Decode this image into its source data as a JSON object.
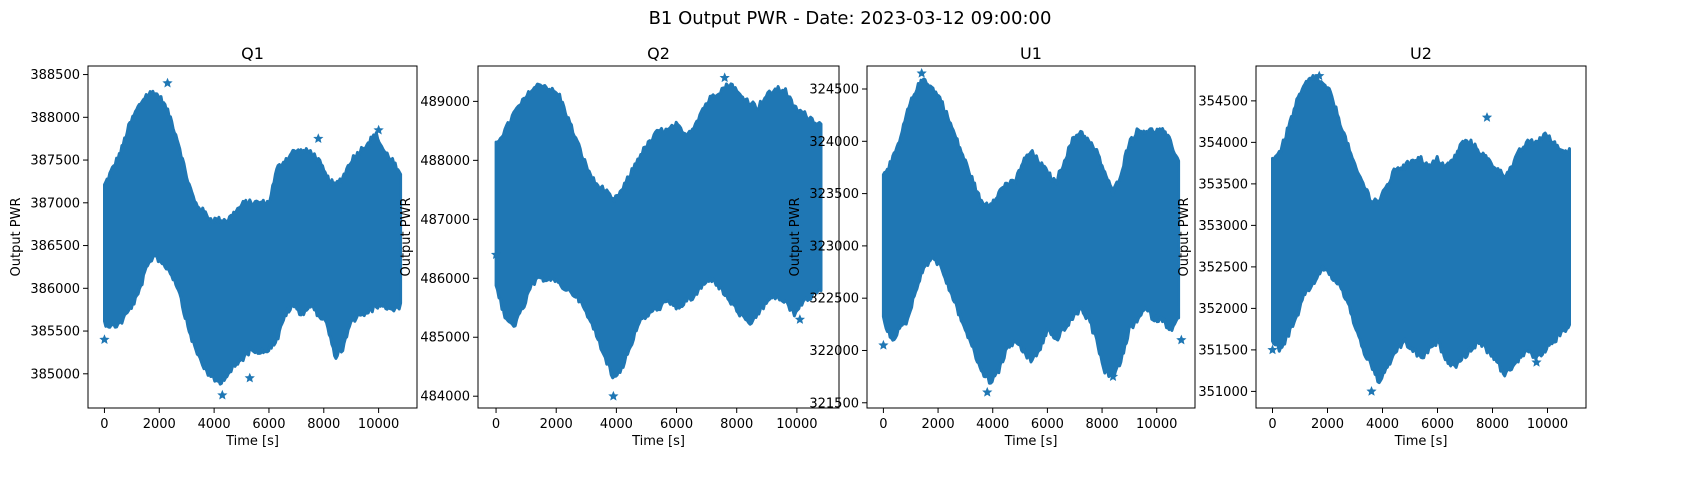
{
  "figure": {
    "title": "B1 Output PWR - Date: 2023-03-12 09:00:00"
  },
  "colors": {
    "series": "#1f77b4"
  },
  "chart_data": [
    {
      "type": "scatter",
      "title": "Q1",
      "xlabel": "Time [s]",
      "ylabel": "Output PWR",
      "xlim": [
        -600,
        11400
      ],
      "ylim": [
        384600,
        388600
      ],
      "xticks": [
        0,
        2000,
        4000,
        6000,
        8000,
        10000
      ],
      "yticks": [
        385000,
        385500,
        386000,
        386500,
        387000,
        387500,
        388000,
        388500
      ],
      "marker": "star",
      "grid": false,
      "envelope": {
        "x": [
          0,
          300,
          600,
          900,
          1200,
          1500,
          1800,
          2100,
          2400,
          2700,
          3000,
          3300,
          3600,
          3900,
          4200,
          4500,
          4800,
          5100,
          5400,
          5700,
          6000,
          6300,
          6600,
          6900,
          7200,
          7500,
          7800,
          8100,
          8400,
          8700,
          9000,
          9300,
          9600,
          9900,
          10200,
          10500,
          10800
        ],
        "upper": [
          387200,
          387400,
          387600,
          387900,
          388100,
          388250,
          388300,
          388200,
          388000,
          387700,
          387300,
          387000,
          386900,
          386800,
          386800,
          386800,
          386900,
          387000,
          387000,
          387000,
          387000,
          387400,
          387500,
          387600,
          387600,
          387600,
          387500,
          387300,
          387200,
          387300,
          387500,
          387600,
          387700,
          387800,
          387600,
          387500,
          387300
        ],
        "lower": [
          385600,
          385550,
          385600,
          385750,
          385900,
          386200,
          386400,
          386300,
          386200,
          386000,
          385600,
          385300,
          385100,
          384950,
          384900,
          385000,
          385100,
          385200,
          385300,
          385250,
          385300,
          385400,
          385700,
          385800,
          385700,
          385800,
          385700,
          385600,
          385200,
          385300,
          385600,
          385700,
          385700,
          385800,
          385800,
          385750,
          385800
        ]
      },
      "outliers": [
        {
          "x": 0,
          "y": 385400
        },
        {
          "x": 2300,
          "y": 388400
        },
        {
          "x": 4300,
          "y": 384750
        },
        {
          "x": 5300,
          "y": 384950
        },
        {
          "x": 7800,
          "y": 387750
        },
        {
          "x": 10000,
          "y": 387850
        }
      ]
    },
    {
      "type": "scatter",
      "title": "Q2",
      "xlabel": "Time [s]",
      "ylabel": "Output PWR",
      "xlim": [
        -600,
        11400
      ],
      "ylim": [
        483800,
        489600
      ],
      "xticks": [
        0,
        2000,
        4000,
        6000,
        8000,
        10000
      ],
      "yticks": [
        484000,
        485000,
        486000,
        487000,
        488000,
        489000
      ],
      "marker": "star",
      "grid": false,
      "envelope": {
        "x": [
          0,
          300,
          600,
          900,
          1200,
          1500,
          1800,
          2100,
          2400,
          2700,
          3000,
          3300,
          3600,
          3900,
          4200,
          4500,
          4800,
          5100,
          5400,
          5700,
          6000,
          6300,
          6600,
          6900,
          7200,
          7500,
          7800,
          8100,
          8400,
          8700,
          9000,
          9300,
          9600,
          9900,
          10200,
          10500,
          10800
        ],
        "upper": [
          488300,
          488500,
          488800,
          489000,
          489200,
          489300,
          489200,
          489100,
          488700,
          488300,
          487900,
          487600,
          487500,
          487300,
          487500,
          487800,
          488100,
          488300,
          488500,
          488500,
          488600,
          488400,
          488600,
          488900,
          489100,
          489200,
          489300,
          489100,
          489000,
          488900,
          489100,
          489200,
          489200,
          488900,
          488800,
          488700,
          488600
        ],
        "lower": [
          485900,
          485300,
          485200,
          485500,
          485900,
          486000,
          486000,
          485900,
          485800,
          485700,
          485400,
          485100,
          484700,
          484300,
          484500,
          484900,
          485300,
          485400,
          485500,
          485600,
          485500,
          485600,
          485700,
          485900,
          486000,
          485800,
          485600,
          485400,
          485200,
          485400,
          485600,
          485700,
          485600,
          485400,
          485600,
          485700,
          485800
        ]
      },
      "outliers": [
        {
          "x": 0,
          "y": 486400
        },
        {
          "x": 3900,
          "y": 484000
        },
        {
          "x": 7600,
          "y": 489400
        },
        {
          "x": 10100,
          "y": 485300
        }
      ]
    },
    {
      "type": "scatter",
      "title": "U1",
      "xlabel": "Time [s]",
      "ylabel": "Output PWR",
      "xlim": [
        -600,
        11400
      ],
      "ylim": [
        321450,
        324720
      ],
      "xticks": [
        0,
        2000,
        4000,
        6000,
        8000,
        10000
      ],
      "yticks": [
        321500,
        322000,
        322500,
        323000,
        323500,
        324000,
        324500
      ],
      "marker": "star",
      "grid": false,
      "envelope": {
        "x": [
          0,
          300,
          600,
          900,
          1200,
          1500,
          1800,
          2100,
          2400,
          2700,
          3000,
          3300,
          3600,
          3900,
          4200,
          4500,
          4800,
          5100,
          5400,
          5700,
          6000,
          6300,
          6600,
          6900,
          7200,
          7500,
          7800,
          8100,
          8400,
          8700,
          9000,
          9300,
          9600,
          9900,
          10200,
          10500,
          10800
        ],
        "upper": [
          323700,
          323800,
          324000,
          324300,
          324500,
          324600,
          324500,
          324400,
          324200,
          324000,
          323800,
          323600,
          323400,
          323400,
          323500,
          323600,
          323600,
          323800,
          323900,
          323800,
          323700,
          323600,
          323800,
          324000,
          324100,
          324000,
          323900,
          323700,
          323500,
          323700,
          324000,
          324100,
          324100,
          324100,
          324100,
          324000,
          323800
        ],
        "lower": [
          322300,
          322100,
          322200,
          322300,
          322600,
          322800,
          322900,
          322800,
          322600,
          322400,
          322200,
          322000,
          321800,
          321700,
          321800,
          322000,
          322100,
          322000,
          321900,
          322000,
          322200,
          322100,
          322200,
          322300,
          322400,
          322300,
          322100,
          321800,
          321750,
          321900,
          322200,
          322300,
          322400,
          322300,
          322300,
          322200,
          322300
        ]
      },
      "outliers": [
        {
          "x": 0,
          "y": 322050
        },
        {
          "x": 1400,
          "y": 324650
        },
        {
          "x": 3800,
          "y": 321600
        },
        {
          "x": 8400,
          "y": 321750
        },
        {
          "x": 10900,
          "y": 322100
        }
      ]
    },
    {
      "type": "scatter",
      "title": "U2",
      "xlabel": "Time [s]",
      "ylabel": "Output PWR",
      "xlim": [
        -600,
        11400
      ],
      "ylim": [
        350800,
        354920
      ],
      "xticks": [
        0,
        2000,
        4000,
        6000,
        8000,
        10000
      ],
      "yticks": [
        351000,
        351500,
        352000,
        352500,
        353000,
        353500,
        354000,
        354500
      ],
      "marker": "star",
      "grid": false,
      "envelope": {
        "x": [
          0,
          300,
          600,
          900,
          1200,
          1500,
          1800,
          2100,
          2400,
          2700,
          3000,
          3300,
          3600,
          3900,
          4200,
          4500,
          4800,
          5100,
          5400,
          5700,
          6000,
          6300,
          6600,
          6900,
          7200,
          7500,
          7800,
          8100,
          8400,
          8700,
          9000,
          9300,
          9600,
          9900,
          10200,
          10500,
          10800
        ],
        "upper": [
          353800,
          353900,
          354200,
          354500,
          354700,
          354800,
          354700,
          354600,
          354300,
          354000,
          353700,
          353500,
          353300,
          353300,
          353500,
          353700,
          353700,
          353800,
          353800,
          353700,
          353800,
          353700,
          353800,
          354000,
          354000,
          353900,
          353800,
          353700,
          353600,
          353700,
          353900,
          354000,
          354000,
          354100,
          354000,
          353900,
          353900
        ],
        "lower": [
          351600,
          351500,
          351700,
          351900,
          352200,
          352300,
          352500,
          352400,
          352300,
          352100,
          351800,
          351500,
          351300,
          351100,
          351300,
          351500,
          351600,
          351500,
          351400,
          351500,
          351600,
          351400,
          351300,
          351400,
          351500,
          351600,
          351500,
          351400,
          351200,
          351300,
          351400,
          351500,
          351400,
          351500,
          351600,
          351700,
          351800
        ]
      },
      "outliers": [
        {
          "x": 0,
          "y": 351500
        },
        {
          "x": 1700,
          "y": 354800
        },
        {
          "x": 3600,
          "y": 351000
        },
        {
          "x": 7800,
          "y": 354300
        },
        {
          "x": 9600,
          "y": 351350
        }
      ]
    }
  ]
}
